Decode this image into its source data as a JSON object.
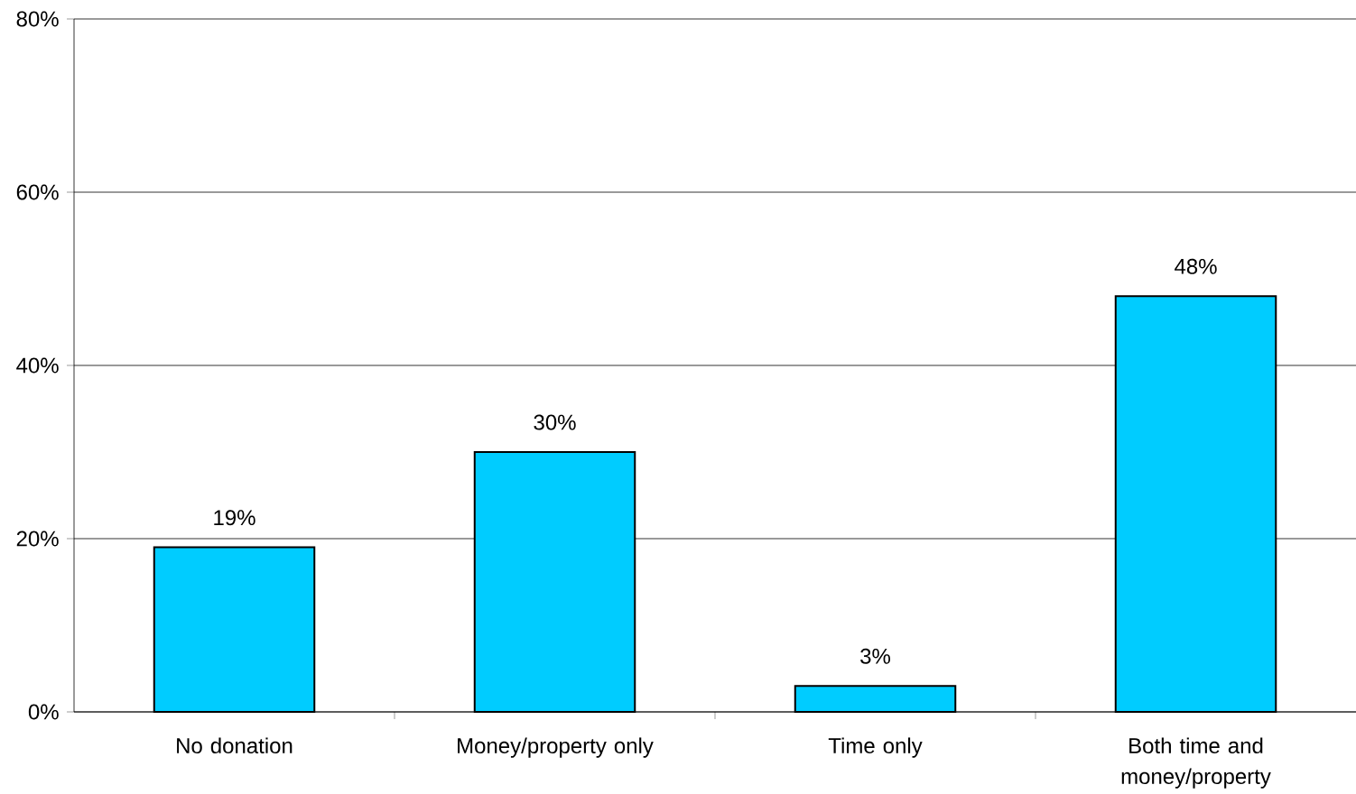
{
  "chart_data": {
    "type": "bar",
    "categories": [
      "No donation",
      "Money/property only",
      "Time only",
      "Both time and money/property"
    ],
    "values": [
      19,
      30,
      3,
      48
    ],
    "value_labels": [
      "19%",
      "30%",
      "3%",
      "48%"
    ],
    "color": "#00ccff",
    "ylim": [
      0,
      80
    ],
    "yticks": [
      {
        "value": 0,
        "label": "0%"
      },
      {
        "value": 20,
        "label": "20%"
      },
      {
        "value": 40,
        "label": "40%"
      },
      {
        "value": 60,
        "label": "60%"
      },
      {
        "value": 80,
        "label": "80%"
      }
    ],
    "grid": "y"
  }
}
